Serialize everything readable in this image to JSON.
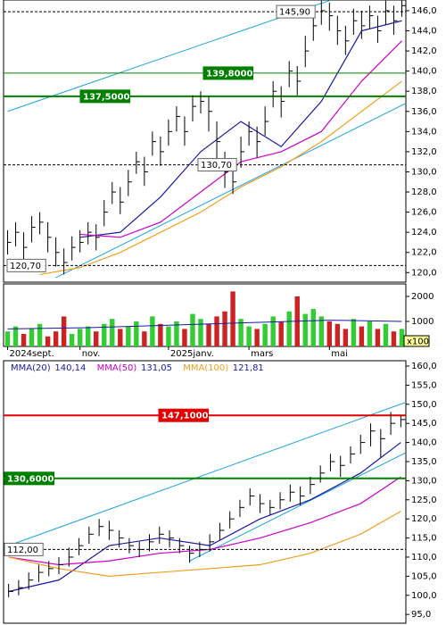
{
  "chart_data": [
    {
      "type": "ohlc",
      "color": "#000000",
      "ylim": [
        119.05,
        147.06
      ],
      "yticks": [
        {
          "value": 120,
          "label": "120,0"
        },
        {
          "value": 122,
          "label": "122,0"
        },
        {
          "value": 124,
          "label": "124,0"
        },
        {
          "value": 126,
          "label": "126,0"
        },
        {
          "value": 128,
          "label": "128,0"
        },
        {
          "value": 130,
          "label": "130,0"
        },
        {
          "value": 132,
          "label": "132,0"
        },
        {
          "value": 134,
          "label": "134,0"
        },
        {
          "value": 136,
          "label": "136,0"
        },
        {
          "value": 138,
          "label": "138,0"
        },
        {
          "value": 140,
          "label": "140,0"
        },
        {
          "value": 142,
          "label": "142,0"
        },
        {
          "value": 144,
          "label": "144,0"
        },
        {
          "value": 146,
          "label": "146,0"
        }
      ],
      "high": [
        124.2,
        125,
        124,
        125.6,
        126,
        125,
        123.5,
        122.4,
        123.6,
        124.2,
        125,
        124.8,
        127.2,
        129,
        128.5,
        130.2,
        132,
        131.5,
        134,
        133.5,
        135.2,
        136.5,
        135.5,
        137.6,
        138,
        137.5,
        135,
        132,
        131,
        133.5,
        135,
        134.5,
        136.5,
        139,
        138.5,
        141,
        140.5,
        143.5,
        145.5,
        147,
        146.8,
        145.5,
        144.5,
        146.2,
        146,
        146.5,
        145.5,
        147,
        146.5,
        147
      ],
      "low": [
        121.8,
        122.6,
        120.8,
        123,
        123.8,
        122,
        120.6,
        119.8,
        121.2,
        122,
        122.8,
        122.2,
        124.6,
        126.8,
        125.8,
        127.6,
        129.8,
        128.6,
        131.6,
        130.6,
        132.6,
        134,
        132.6,
        135,
        135.8,
        134,
        131.2,
        128.4,
        127.8,
        130.4,
        132.6,
        131.4,
        133.6,
        136.4,
        135.4,
        138.4,
        137.6,
        140.4,
        143,
        144.6,
        144,
        142.6,
        141.6,
        143.6,
        143.2,
        144.2,
        142.8,
        144.6,
        143.6,
        145.4
      ],
      "close": [
        123,
        124,
        122.5,
        124.5,
        125,
        123.5,
        122,
        121,
        122.5,
        123,
        124,
        123.5,
        126,
        128,
        127,
        129,
        131,
        130,
        133,
        132,
        134,
        135.5,
        134,
        136.5,
        137,
        136,
        133,
        130,
        129,
        132,
        134,
        133,
        135,
        138,
        137,
        140,
        139,
        142,
        144.5,
        146,
        145.5,
        144,
        143,
        145,
        144.5,
        145.5,
        144,
        146,
        145,
        146.5
      ],
      "series": [
        {
          "color": "#1a1aa0",
          "x": [
            9,
            14,
            19,
            24,
            29,
            34,
            39,
            44,
            49
          ],
          "values": [
            123.5,
            124,
            127.5,
            132,
            135,
            132.5,
            137,
            144,
            145
          ]
        },
        {
          "color": "#cc00cc",
          "x": [
            9,
            14,
            19,
            24,
            29,
            34,
            39,
            44,
            49
          ],
          "values": [
            123.8,
            123.5,
            125,
            128,
            131,
            132,
            134,
            139,
            143
          ]
        },
        {
          "color": "#f0a020",
          "x": [
            4,
            9,
            14,
            19,
            24,
            29,
            34,
            39,
            44,
            49
          ],
          "values": [
            119.8,
            120.5,
            122,
            124,
            126,
            128.5,
            130.5,
            133,
            136,
            139
          ]
        }
      ],
      "channels": [
        {
          "color": "#1ca3e0",
          "x": [
            0,
            40
          ],
          "values": [
            136,
            147
          ]
        },
        {
          "color": "#1ca3e0",
          "x": [
            6,
            50
          ],
          "values": [
            119.5,
            137
          ]
        }
      ],
      "levels": [
        {
          "label": "145,90",
          "value": 145.9,
          "style": "dashed",
          "color": "#000000"
        },
        {
          "label": "139,8000",
          "value": 139.8,
          "style": "solid",
          "color": "#008000"
        },
        {
          "label": "137,5000",
          "value": 137.5,
          "style": "thick",
          "color": "#008000"
        },
        {
          "label": "130,70",
          "value": 130.7,
          "style": "dashed",
          "color": "#000000"
        },
        {
          "label": "120,70",
          "value": 120.7,
          "style": "dashed",
          "color": "#000000"
        }
      ]
    },
    {
      "type": "volume",
      "ylim": [
        0,
        2500
      ],
      "yticks": [
        1000,
        2000
      ],
      "unit_label": "x100",
      "up_color": "#33cc33",
      "down_color": "#cc2222",
      "values": [
        600,
        800,
        500,
        700,
        900,
        400,
        600,
        1200,
        500,
        700,
        800,
        600,
        900,
        1100,
        700,
        800,
        1000,
        600,
        1200,
        900,
        800,
        1000,
        700,
        1300,
        1100,
        900,
        1200,
        1400,
        2200,
        1100,
        800,
        700,
        900,
        1200,
        1000,
        1400,
        2000,
        1300,
        1500,
        1200,
        1000,
        900,
        700,
        1100,
        800,
        1000,
        700,
        900,
        600,
        700
      ],
      "average": {
        "color": "#1a1aa0",
        "x": [
          0,
          10,
          20,
          30,
          40,
          49
        ],
        "values": [
          700,
          750,
          850,
          950,
          1050,
          1000
        ]
      },
      "date_ticks": [
        {
          "value": 0,
          "label": "2024sept."
        },
        {
          "value": 9,
          "label": "nov."
        },
        {
          "value": 20,
          "label": "2025janv."
        },
        {
          "value": 30,
          "label": "mars"
        },
        {
          "value": 40,
          "label": "mai"
        }
      ]
    },
    {
      "type": "ohlc",
      "color": "#000000",
      "ylim": [
        92.7,
        161.4
      ],
      "yticks": [
        {
          "value": 95,
          "label": "95,0"
        },
        {
          "value": 100,
          "label": "100,0"
        },
        {
          "value": 105,
          "label": "105,0"
        },
        {
          "value": 110,
          "label": "110,0"
        },
        {
          "value": 115,
          "label": "115,0"
        },
        {
          "value": 120,
          "label": "120,0"
        },
        {
          "value": 125,
          "label": "125,0"
        },
        {
          "value": 130,
          "label": "130,0"
        },
        {
          "value": 135,
          "label": "135,0"
        },
        {
          "value": 140,
          "label": "140,0"
        },
        {
          "value": 145,
          "label": "145,0"
        },
        {
          "value": 150,
          "label": "150,0"
        },
        {
          "value": 155,
          "label": "155,0"
        },
        {
          "value": 160,
          "label": "160,0"
        }
      ],
      "high": [
        103,
        104,
        106,
        108,
        109,
        110,
        112.5,
        115,
        118,
        120,
        119.5,
        117,
        115,
        114,
        116,
        118,
        117,
        115,
        113,
        114,
        116,
        119,
        122,
        125,
        128,
        126.5,
        125,
        127,
        129,
        128.5,
        131,
        134,
        137,
        136.5,
        139,
        142,
        145,
        143.5,
        148,
        147
      ],
      "low": [
        99.5,
        100,
        101.5,
        103.5,
        105,
        105.5,
        107.5,
        110.5,
        113.5,
        115.5,
        114.5,
        112.5,
        111,
        110,
        111.5,
        113.5,
        112.5,
        111,
        108.5,
        110,
        111.5,
        114.5,
        117.5,
        120.5,
        123.5,
        121.5,
        121,
        122.5,
        124.5,
        123.5,
        126.5,
        129.5,
        132.5,
        131,
        134.5,
        137,
        139,
        136,
        142,
        144
      ],
      "close": [
        101,
        102,
        104,
        106,
        107,
        108,
        110,
        113,
        116,
        118,
        117,
        115,
        113,
        112,
        114,
        116,
        115,
        113,
        111,
        112,
        114,
        117,
        120,
        123,
        126,
        124,
        123,
        125,
        127,
        126,
        129,
        132,
        135,
        134,
        137,
        140,
        143,
        141,
        145,
        146
      ],
      "series": [
        {
          "name": "MMA(20)",
          "last_label": "140,14",
          "color": "#1a1aa0",
          "x": [
            0,
            5,
            10,
            15,
            20,
            25,
            30,
            35,
            39
          ],
          "values": [
            101,
            104,
            113,
            115,
            113,
            120,
            125,
            132,
            140
          ]
        },
        {
          "name": "MMA(50)",
          "last_label": "131,05",
          "color": "#cc00cc",
          "x": [
            0,
            5,
            10,
            15,
            20,
            25,
            30,
            35,
            39
          ],
          "values": [
            110,
            108,
            109,
            111,
            112,
            115,
            119,
            124,
            131
          ]
        },
        {
          "name": "MMA(100)",
          "last_label": "121,81",
          "color": "#f0a020",
          "x": [
            0,
            5,
            10,
            15,
            20,
            25,
            30,
            35,
            39
          ],
          "values": [
            110,
            107,
            105,
            106,
            107,
            108,
            111,
            116,
            122
          ]
        }
      ],
      "channels": [
        {
          "color": "#1ca3e0",
          "x": [
            0,
            40
          ],
          "values": [
            113,
            151
          ]
        },
        {
          "color": "#1ca3e0",
          "x": [
            18,
            40
          ],
          "values": [
            109,
            138
          ]
        }
      ],
      "levels": [
        {
          "label": "147,1000",
          "value": 147.1,
          "style": "thick",
          "color": "#e00000"
        },
        {
          "label": "130,6000",
          "value": 130.6,
          "style": "thick",
          "color": "#008000"
        },
        {
          "label": "112,00",
          "value": 112,
          "style": "dashed",
          "color": "#000000"
        }
      ]
    }
  ]
}
